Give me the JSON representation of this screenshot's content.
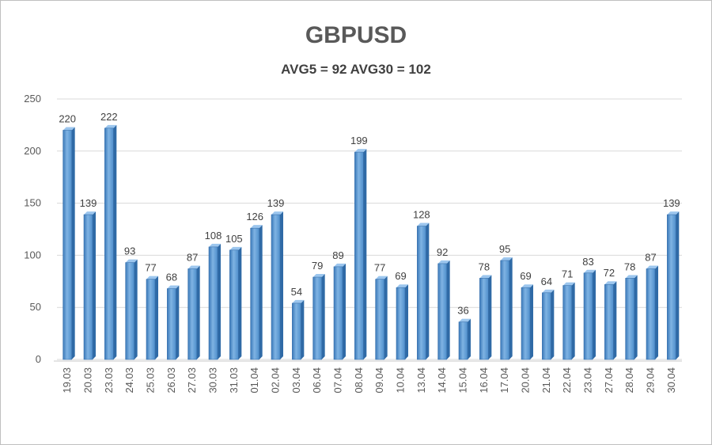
{
  "chart_data": {
    "type": "bar",
    "title": "GBPUSD",
    "subtitle": "AVG5 = 92 AVG30 = 102",
    "xlabel": "",
    "ylabel": "",
    "ylim": [
      0,
      250
    ],
    "yticks": [
      0,
      50,
      100,
      150,
      200,
      250
    ],
    "grid": true,
    "legend": "none",
    "bar_color": "#5b9bd5",
    "categories": [
      "19.03",
      "20.03",
      "23.03",
      "24.03",
      "25.03",
      "26.03",
      "27.03",
      "30.03",
      "31.03",
      "01.04",
      "02.04",
      "03.04",
      "06.04",
      "07.04",
      "08.04",
      "09.04",
      "10.04",
      "13.04",
      "14.04",
      "15.04",
      "16.04",
      "17.04",
      "20.04",
      "21.04",
      "22.04",
      "23.04",
      "27.04",
      "28.04",
      "29.04",
      "30.04"
    ],
    "values": [
      220,
      139,
      222,
      93,
      77,
      68,
      87,
      108,
      105,
      126,
      139,
      54,
      79,
      89,
      199,
      77,
      69,
      128,
      92,
      36,
      78,
      95,
      69,
      64,
      71,
      83,
      72,
      78,
      87,
      139
    ]
  }
}
